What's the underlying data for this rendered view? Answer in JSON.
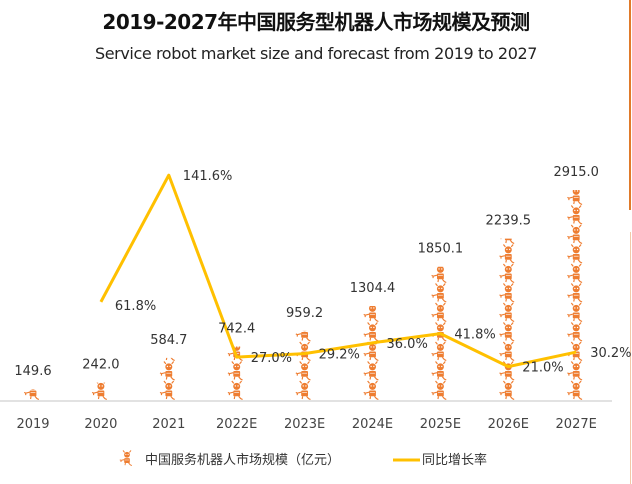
{
  "header": {
    "title": "2019-2027年中国服务型机器人市场规模及预测",
    "subtitle": "Service robot market size and forecast from 2019 to 2027"
  },
  "colors": {
    "bar": "#ee7d31",
    "line": "#ffc000",
    "axis": "#d9d9d9",
    "edge_accent": "#e07a2a"
  },
  "chart_data": {
    "type": "bar",
    "title": "2019-2027年中国服务型机器人市场规模及预测",
    "subtitle": "Service robot market size and forecast from 2019 to 2027",
    "categories": [
      "2019",
      "2020",
      "2021",
      "2022E",
      "2023E",
      "2024E",
      "2025E",
      "2026E",
      "2027E"
    ],
    "series": [
      {
        "name": "中国服务机器人市场规模（亿元）",
        "type": "bar",
        "style": "pictograph-robot-icons",
        "values": [
          149.6,
          242.0,
          584.7,
          742.4,
          959.2,
          1304.4,
          1850.1,
          2239.5,
          2915.0
        ],
        "labels": [
          "149.6",
          "242.0",
          "584.7",
          "742.4",
          "959.2",
          "1304.4",
          "1850.1",
          "2239.5",
          "2915.0"
        ]
      },
      {
        "name": "同比增长率",
        "type": "line",
        "axis": "secondary",
        "values": [
          null,
          61.8,
          141.6,
          27.0,
          29.2,
          36.0,
          41.8,
          21.0,
          30.2
        ],
        "labels": [
          "",
          "61.8%",
          "141.6%",
          "27.0%",
          "29.2%",
          "36.0%",
          "41.8%",
          "21.0%",
          "30.2%"
        ]
      }
    ],
    "xlabel": "",
    "ylabel": "",
    "ylim": [
      0,
      3000
    ],
    "y2lim": [
      0,
      160
    ],
    "grid": false,
    "legend": "bottom"
  }
}
